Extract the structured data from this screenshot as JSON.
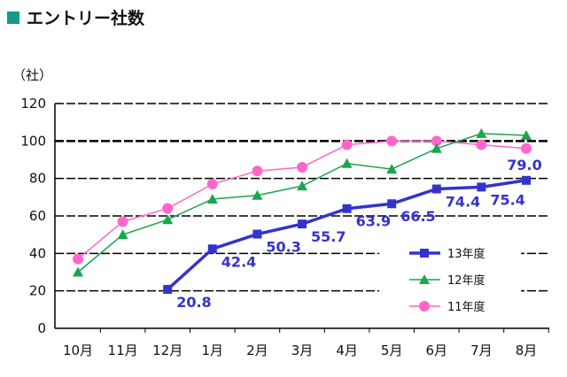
{
  "title": "エントリー社数",
  "chart_data": {
    "type": "line",
    "title": "エントリー社数",
    "ylabel": "（社）",
    "xlabel": "",
    "categories": [
      "10月",
      "11月",
      "12月",
      "1月",
      "2月",
      "3月",
      "4月",
      "5月",
      "6月",
      "7月",
      "8月"
    ],
    "ylim": [
      0,
      120
    ],
    "yticks": [
      0,
      20,
      40,
      60,
      80,
      100,
      120
    ],
    "grid": true,
    "legend": "bottom-right",
    "series": [
      {
        "name": "13年度",
        "color": "#3333cc",
        "marker": "square",
        "values": [
          null,
          null,
          20.8,
          42.4,
          50.3,
          55.7,
          63.9,
          66.5,
          74.4,
          75.4,
          79.0
        ],
        "labels": [
          "",
          "",
          "20.8",
          "42.4",
          "50.3",
          "55.7",
          "63.9",
          "66.5",
          "74.4",
          "75.4",
          "79.0"
        ]
      },
      {
        "name": "12年度",
        "color": "#1aa64a",
        "marker": "triangle",
        "values": [
          30,
          50,
          58,
          69,
          71,
          76,
          88,
          85,
          96,
          104,
          103
        ]
      },
      {
        "name": "11年度",
        "color": "#ff66cc",
        "marker": "circle",
        "values": [
          37,
          57,
          64,
          77,
          84,
          86,
          98,
          100,
          100,
          98,
          96
        ]
      }
    ]
  }
}
